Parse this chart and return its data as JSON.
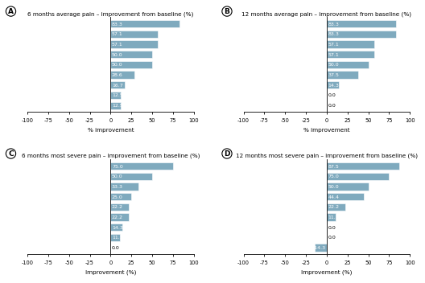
{
  "panels": [
    {
      "label": "A",
      "title": "6 months average pain – improvement from baseline (%)",
      "values": [
        83.3,
        57.1,
        57.1,
        50.0,
        50.0,
        28.6,
        16.7,
        12.5,
        12.5
      ],
      "xlabel": "% improvement"
    },
    {
      "label": "B",
      "title": "12 months average pain – improvement from baseline (%)",
      "values": [
        83.3,
        83.3,
        57.1,
        57.1,
        50.0,
        37.5,
        14.3,
        0.0,
        0.0
      ],
      "xlabel": "% improvement"
    },
    {
      "label": "C",
      "title": "6 months most severe pain – improvement from baseline (%)",
      "values": [
        75.0,
        50.0,
        33.3,
        25.0,
        22.2,
        22.2,
        14.3,
        11.1,
        0.0
      ],
      "xlabel": "Improvement (%)"
    },
    {
      "label": "D",
      "title": "12 months most severe pain – improvement from baseline (%)",
      "values": [
        87.5,
        75.0,
        50.0,
        44.4,
        22.2,
        11.1,
        0.0,
        0.0,
        -14.3
      ],
      "xlabel": "Improvement (%)"
    }
  ],
  "bar_color": "#7faabe",
  "xlim": [
    -100,
    100
  ],
  "xticks": [
    -100,
    -75,
    -50,
    -25,
    0,
    25,
    50,
    75,
    100
  ],
  "bar_height": 0.72,
  "title_fontsize": 5.2,
  "tick_fontsize": 4.8,
  "xlabel_fontsize": 5.2,
  "value_fontsize": 4.5,
  "panel_label_fontsize": 6.5
}
